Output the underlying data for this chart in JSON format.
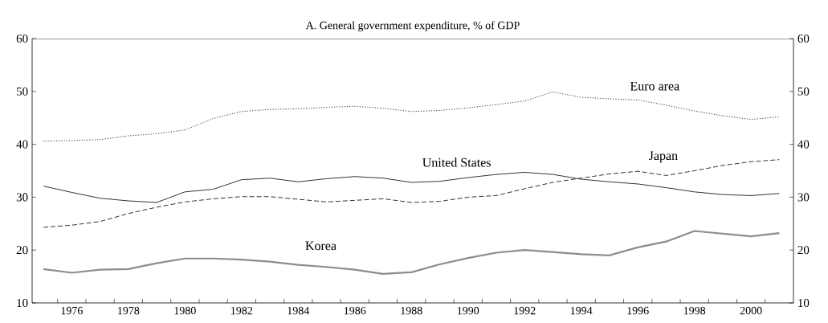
{
  "chart_data": {
    "type": "line",
    "title": "A. General government expenditure, % of GDP",
    "x": [
      1975,
      1976,
      1977,
      1978,
      1979,
      1980,
      1981,
      1982,
      1983,
      1984,
      1985,
      1986,
      1987,
      1988,
      1989,
      1990,
      1991,
      1992,
      1993,
      1994,
      1995,
      1996,
      1997,
      1998,
      1999,
      2000,
      2001
    ],
    "series": [
      {
        "name": "Euro area",
        "color": "#000000",
        "line_style": "dotted",
        "values": [
          40.6,
          40.7,
          40.9,
          41.6,
          42.0,
          42.7,
          44.9,
          46.2,
          46.6,
          46.7,
          47.0,
          47.2,
          46.8,
          46.2,
          46.4,
          46.9,
          47.5,
          48.2,
          49.9,
          48.9,
          48.6,
          48.4,
          47.4,
          46.3,
          45.4,
          44.7,
          45.2
        ]
      },
      {
        "name": "United States",
        "color": "#000000",
        "line_style": "solid",
        "values": [
          32.1,
          30.9,
          29.8,
          29.3,
          29.0,
          31.0,
          31.5,
          33.3,
          33.6,
          32.9,
          33.5,
          33.9,
          33.6,
          32.8,
          33.0,
          33.7,
          34.3,
          34.7,
          34.3,
          33.4,
          32.9,
          32.5,
          31.8,
          31.0,
          30.5,
          30.3,
          30.7
        ]
      },
      {
        "name": "Japan",
        "color": "#000000",
        "line_style": "dashed",
        "values": [
          24.3,
          24.7,
          25.4,
          26.9,
          28.1,
          29.1,
          29.7,
          30.1,
          30.1,
          29.6,
          29.1,
          29.4,
          29.7,
          29.0,
          29.2,
          30.0,
          30.3,
          31.6,
          32.8,
          33.6,
          34.4,
          34.9,
          34.1,
          35.0,
          36.0,
          36.7,
          37.1
        ]
      },
      {
        "name": "Korea",
        "color": "#8c8c8c",
        "line_style": "solid",
        "values": [
          16.4,
          15.7,
          16.3,
          16.4,
          17.5,
          18.4,
          18.4,
          18.2,
          17.8,
          17.2,
          16.8,
          16.3,
          15.5,
          15.8,
          17.3,
          18.5,
          19.5,
          20.0,
          19.6,
          19.2,
          19.0,
          20.5,
          21.6,
          23.6,
          23.1,
          22.6,
          23.2
        ]
      }
    ],
    "xlim": [
      1974.6,
      2001.5
    ],
    "xticks": [
      {
        "value": 1975.5,
        "label": null
      },
      {
        "value": 1976,
        "label": "1976"
      },
      {
        "value": 1976.5,
        "label": null
      },
      {
        "value": 1977.5,
        "label": null
      },
      {
        "value": 1978,
        "label": "1978"
      },
      {
        "value": 1978.5,
        "label": null
      },
      {
        "value": 1979.5,
        "label": null
      },
      {
        "value": 1980,
        "label": "1980"
      },
      {
        "value": 1980.5,
        "label": null
      },
      {
        "value": 1981.5,
        "label": null
      },
      {
        "value": 1982,
        "label": "1982"
      },
      {
        "value": 1982.5,
        "label": null
      },
      {
        "value": 1983.5,
        "label": null
      },
      {
        "value": 1984,
        "label": "1984"
      },
      {
        "value": 1984.5,
        "label": null
      },
      {
        "value": 1985.5,
        "label": null
      },
      {
        "value": 1986,
        "label": "1986"
      },
      {
        "value": 1986.5,
        "label": null
      },
      {
        "value": 1987.5,
        "label": null
      },
      {
        "value": 1988,
        "label": "1988"
      },
      {
        "value": 1988.5,
        "label": null
      },
      {
        "value": 1989.5,
        "label": null
      },
      {
        "value": 1990,
        "label": "1990"
      },
      {
        "value": 1990.5,
        "label": null
      },
      {
        "value": 1991.5,
        "label": null
      },
      {
        "value": 1992,
        "label": "1992"
      },
      {
        "value": 1992.5,
        "label": null
      },
      {
        "value": 1993.5,
        "label": null
      },
      {
        "value": 1994,
        "label": "1994"
      },
      {
        "value": 1994.5,
        "label": null
      },
      {
        "value": 1995.5,
        "label": null
      },
      {
        "value": 1996,
        "label": "1996"
      },
      {
        "value": 1996.5,
        "label": null
      },
      {
        "value": 1997.5,
        "label": null
      },
      {
        "value": 1998,
        "label": "1998"
      },
      {
        "value": 1998.5,
        "label": null
      },
      {
        "value": 1999.5,
        "label": null
      },
      {
        "value": 2000,
        "label": "2000"
      },
      {
        "value": 2000.5,
        "label": null
      }
    ],
    "ylim": [
      10,
      60
    ],
    "yticks": [
      10,
      20,
      30,
      40,
      50,
      60
    ],
    "y2lim": [
      10,
      60
    ],
    "y2ticks": [
      10,
      20,
      30,
      40,
      50,
      60
    ],
    "grid": false,
    "marker": "none"
  }
}
